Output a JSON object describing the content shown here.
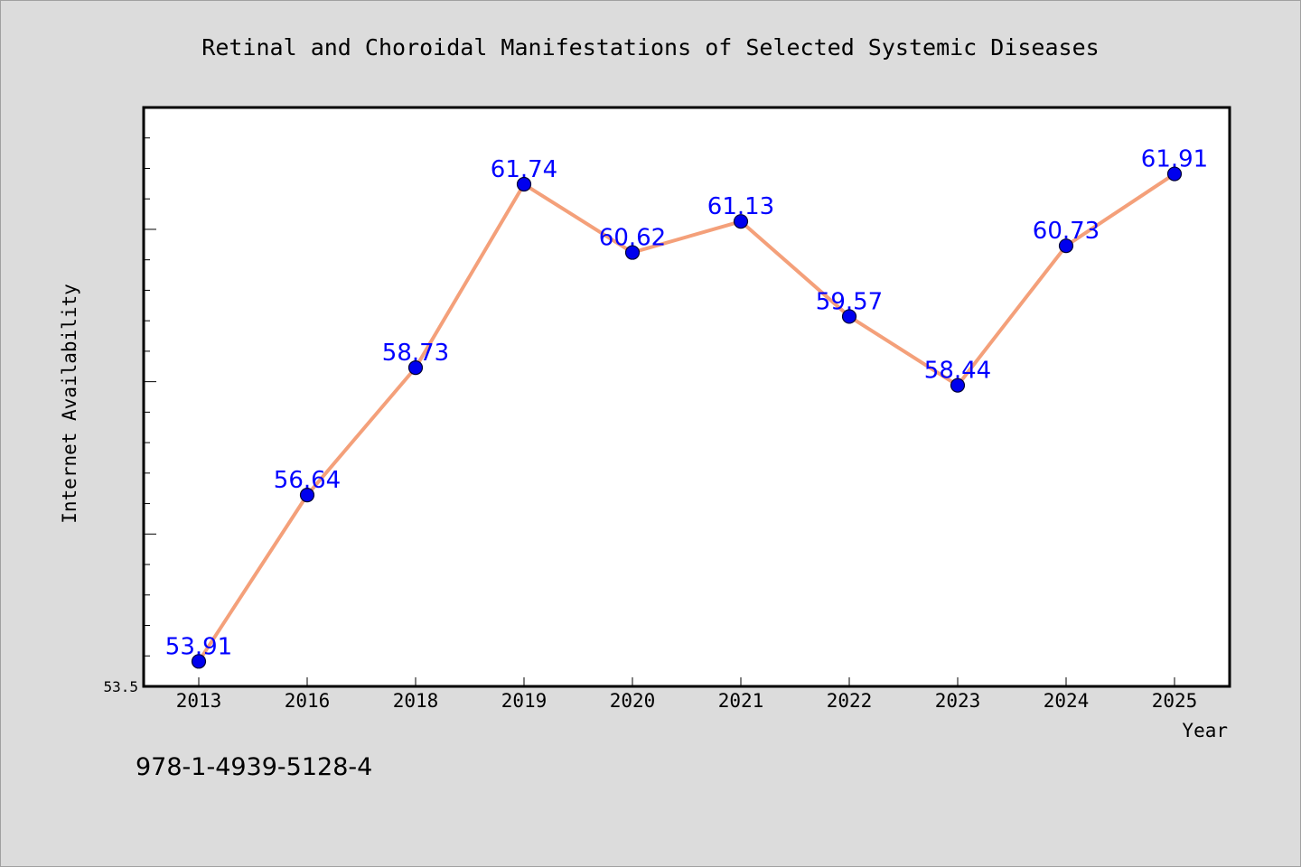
{
  "chart_data": {
    "type": "line",
    "title": "Retinal and Choroidal Manifestations of Selected Systemic Diseases",
    "xlabel": "Year",
    "ylabel": "Internet Availability",
    "categories": [
      "2013",
      "2016",
      "2018",
      "2019",
      "2020",
      "2021",
      "2022",
      "2023",
      "2024",
      "2025"
    ],
    "series": [
      {
        "values": [
          53.91,
          56.64,
          58.73,
          61.74,
          60.62,
          61.13,
          59.57,
          58.44,
          60.73,
          61.91
        ],
        "data_labels": [
          "53.91",
          "56.64",
          "58.73",
          "61.74",
          "60.62",
          "61.13",
          "59.57",
          "58.44",
          "60.73",
          "61.91"
        ]
      }
    ],
    "ylim": [
      53.5,
      63.0
    ],
    "y_tick_labels": [
      "53.5"
    ],
    "y_minor_tick_step": 0.5,
    "y_major_tick_every": 5,
    "grid": false,
    "legend": "none",
    "colors": {
      "line": "#f4a07a",
      "marker": "#0000ee",
      "marker_edge": "#000033",
      "data_label": "#0000ff",
      "background": "#dcdcdc",
      "plot_area": "#ffffff"
    }
  },
  "footer": {
    "isbn": "978-1-4939-5128-4"
  }
}
